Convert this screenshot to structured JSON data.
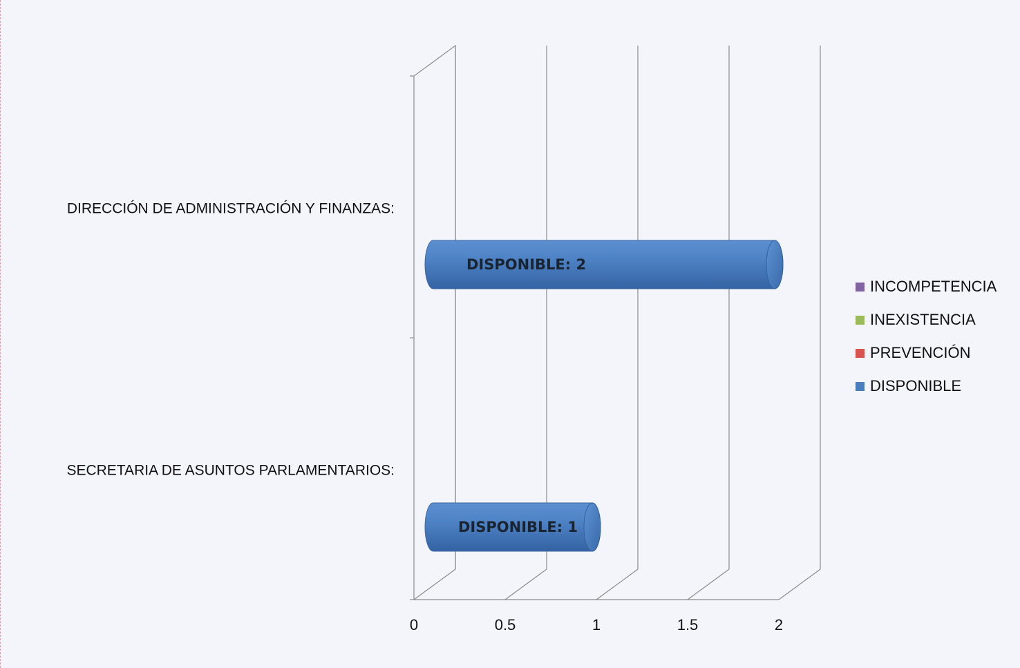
{
  "chart_data": {
    "type": "bar",
    "orientation": "horizontal",
    "style": "3d-cylinder",
    "categories": [
      "DIRECCIÓN DE ADMINISTRACIÓN Y FINANZAS:",
      "SECRETARIA DE ASUNTOS PARLAMENTARIOS:"
    ],
    "series": [
      {
        "name": "DISPONIBLE",
        "color": "#4a7ebf",
        "values": [
          2,
          1
        ],
        "data_labels": [
          "DISPONIBLE: 2",
          "DISPONIBLE: 1"
        ]
      },
      {
        "name": "PREVENCIÓN",
        "color": "#d9534f",
        "values": [
          0,
          0
        ]
      },
      {
        "name": "INEXISTENCIA",
        "color": "#9bbb59",
        "values": [
          0,
          0
        ]
      },
      {
        "name": "INCOMPETENCIA",
        "color": "#8064a2",
        "values": [
          0,
          0
        ]
      }
    ],
    "xticks": [
      "0",
      "0.5",
      "1",
      "1.5",
      "2"
    ],
    "xlim": [
      0,
      2
    ],
    "legend": {
      "placement": "right",
      "order": [
        "INCOMPETENCIA",
        "INEXISTENCIA",
        "PREVENCIÓN",
        "DISPONIBLE"
      ]
    },
    "grid": true
  }
}
